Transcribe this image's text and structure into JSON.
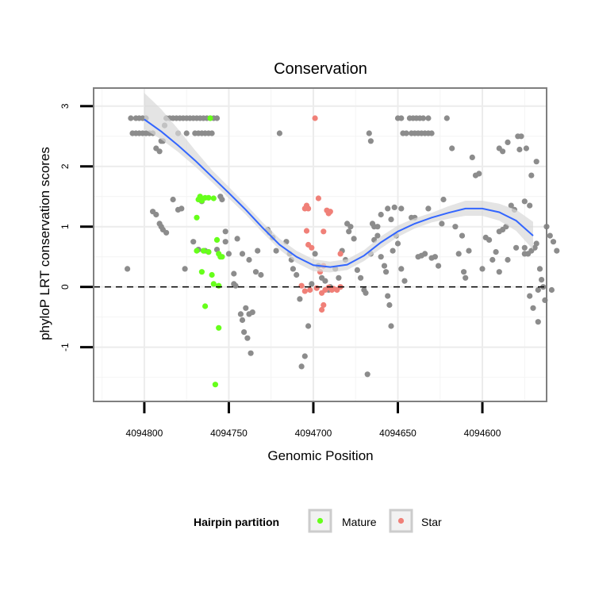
{
  "chart_data": {
    "type": "scatter",
    "title": "Conservation",
    "xlabel": "Genomic Position",
    "ylabel": "phyloP LRT conservation scores",
    "x_reversed": true,
    "xlim": [
      4094830,
      4094562
    ],
    "ylim": [
      -1.9,
      3.3
    ],
    "x_ticks": [
      4094800,
      4094750,
      4094700,
      4094650,
      4094600
    ],
    "x_tick_labels": [
      "4094800",
      "4094750",
      "4094700",
      "4094650",
      "4094600"
    ],
    "y_ticks": [
      -1,
      0,
      1,
      2,
      3
    ],
    "y_tick_labels": [
      "-1",
      "0",
      "1",
      "2",
      "3"
    ],
    "grid": true,
    "reference_line": {
      "y": 0,
      "style": "dashed"
    },
    "legend": {
      "title": "Hairpin partition",
      "position": "bottom",
      "entries": [
        {
          "label": "Mature",
          "color": "#66ff1a"
        },
        {
          "label": "Star",
          "color": "#f08078"
        }
      ]
    },
    "colors": {
      "other": "#8c8c8c",
      "mature": "#66ff1a",
      "star": "#f08078",
      "smooth": "#3366ff",
      "band": "#d9d9d9"
    },
    "smooth": {
      "x": [
        4094800,
        4094790,
        4094780,
        4094770,
        4094760,
        4094750,
        4094740,
        4094730,
        4094720,
        4094710,
        4094700,
        4094690,
        4094680,
        4094670,
        4094660,
        4094650,
        4094640,
        4094630,
        4094620,
        4094610,
        4094600,
        4094590,
        4094580,
        4094570
      ],
      "y": [
        2.78,
        2.58,
        2.35,
        2.1,
        1.83,
        1.56,
        1.28,
        0.98,
        0.7,
        0.5,
        0.36,
        0.33,
        0.37,
        0.52,
        0.74,
        0.92,
        1.05,
        1.15,
        1.23,
        1.3,
        1.3,
        1.24,
        1.1,
        0.85
      ],
      "lower": [
        2.62,
        2.45,
        2.24,
        2.0,
        1.74,
        1.47,
        1.2,
        0.9,
        0.62,
        0.4,
        0.26,
        0.24,
        0.28,
        0.43,
        0.64,
        0.83,
        0.97,
        1.07,
        1.13,
        1.18,
        1.18,
        1.1,
        0.93,
        0.62
      ],
      "upper": [
        3.22,
        2.95,
        2.62,
        2.27,
        1.94,
        1.66,
        1.37,
        1.07,
        0.8,
        0.6,
        0.46,
        0.42,
        0.46,
        0.61,
        0.84,
        1.02,
        1.14,
        1.23,
        1.34,
        1.43,
        1.43,
        1.38,
        1.28,
        1.08
      ]
    },
    "series": [
      {
        "name": "Mature",
        "color": "#66ff1a",
        "points": [
          [
            4094769,
            1.15
          ],
          [
            4094768,
            1.45
          ],
          [
            4094767,
            1.5
          ],
          [
            4094766,
            1.43
          ],
          [
            4094764,
            1.48
          ],
          [
            4094762,
            1.48
          ],
          [
            4094761,
            2.8
          ],
          [
            4094759,
            1.47
          ],
          [
            4094769,
            0.6
          ],
          [
            4094765,
            0.6
          ],
          [
            4094762,
            0.58
          ],
          [
            4094757,
            0.78
          ],
          [
            4094756,
            0.55
          ],
          [
            4094755,
            0.5
          ],
          [
            4094754,
            0.5
          ],
          [
            4094766,
            0.25
          ],
          [
            4094760,
            0.2
          ],
          [
            4094759,
            0.05
          ],
          [
            4094756,
            0.02
          ],
          [
            4094764,
            -0.32
          ],
          [
            4094756,
            -0.68
          ],
          [
            4094758,
            -1.62
          ]
        ]
      },
      {
        "name": "Star",
        "points": [
          [
            4094699,
            2.8
          ],
          [
            4094697,
            1.47
          ],
          [
            4094705,
            1.3
          ],
          [
            4094704,
            1.35
          ],
          [
            4094703,
            1.3
          ],
          [
            4094692,
            1.27
          ],
          [
            4094691,
            1.22
          ],
          [
            4094690,
            1.25
          ],
          [
            4094694,
            0.92
          ],
          [
            4094704,
            0.93
          ],
          [
            4094703,
            0.7
          ],
          [
            4094701,
            0.65
          ],
          [
            4094694,
            0.35
          ],
          [
            4094696,
            0.25
          ],
          [
            4094684,
            0.55
          ],
          [
            4094698,
            -0.02
          ],
          [
            4094695,
            -0.1
          ],
          [
            4094693,
            -0.05
          ],
          [
            4094691,
            -0.01
          ],
          [
            4094689,
            -0.05
          ],
          [
            4094688,
            -0.03
          ],
          [
            4094686,
            -0.05
          ],
          [
            4094684,
            0.0
          ],
          [
            4094695,
            -0.38
          ],
          [
            4094694,
            -0.3
          ],
          [
            4094702,
            -0.05
          ],
          [
            4094705,
            -0.07
          ],
          [
            4094707,
            0.02
          ]
        ]
      },
      {
        "points": [
          [
            4094810,
            0.3
          ],
          [
            4094808,
            2.8
          ],
          [
            4094805,
            2.8
          ],
          [
            4094803,
            2.8
          ],
          [
            4094801,
            2.8
          ],
          [
            4094799,
            2.8
          ],
          [
            4094807,
            2.55
          ],
          [
            4094805,
            2.55
          ],
          [
            4094803,
            2.55
          ],
          [
            4094801,
            2.55
          ],
          [
            4094799,
            2.55
          ],
          [
            4094797,
            2.55
          ],
          [
            4094795,
            2.55
          ],
          [
            4094793,
            2.3
          ],
          [
            4094791,
            2.25
          ],
          [
            4094790,
            2.42
          ],
          [
            4094789,
            2.42
          ],
          [
            4094788,
            2.68
          ],
          [
            4094787,
            2.8
          ],
          [
            4094785,
            2.8
          ],
          [
            4094783,
            2.8
          ],
          [
            4094781,
            2.8
          ],
          [
            4094779,
            2.8
          ],
          [
            4094777,
            2.8
          ],
          [
            4094775,
            2.8
          ],
          [
            4094773,
            2.8
          ],
          [
            4094771,
            2.8
          ],
          [
            4094769,
            2.8
          ],
          [
            4094767,
            2.8
          ],
          [
            4094765,
            2.8
          ],
          [
            4094763,
            2.8
          ],
          [
            4094761,
            2.8
          ],
          [
            4094759,
            2.8
          ],
          [
            4094757,
            2.8
          ],
          [
            4094780,
            2.55
          ],
          [
            4094775,
            2.55
          ],
          [
            4094770,
            2.55
          ],
          [
            4094768,
            2.55
          ],
          [
            4094766,
            2.55
          ],
          [
            4094764,
            2.55
          ],
          [
            4094762,
            2.55
          ],
          [
            4094760,
            2.55
          ],
          [
            4094795,
            1.25
          ],
          [
            4094793,
            1.2
          ],
          [
            4094791,
            1.05
          ],
          [
            4094790,
            1.0
          ],
          [
            4094789,
            0.95
          ],
          [
            4094787,
            0.9
          ],
          [
            4094783,
            1.45
          ],
          [
            4094780,
            1.28
          ],
          [
            4094778,
            1.3
          ],
          [
            4094776,
            0.3
          ],
          [
            4094771,
            0.75
          ],
          [
            4094768,
            0.62
          ],
          [
            4094766,
            1.42
          ],
          [
            4094764,
            0.6
          ],
          [
            4094762,
            0.58
          ],
          [
            4094755,
            1.5
          ],
          [
            4094754,
            1.45
          ],
          [
            4094757,
            0.62
          ],
          [
            4094752,
            0.75
          ],
          [
            4094750,
            0.55
          ],
          [
            4094747,
            0.22
          ],
          [
            4094747,
            0.05
          ],
          [
            4094746,
            0.02
          ],
          [
            4094743,
            -0.45
          ],
          [
            4094742,
            -0.55
          ],
          [
            4094741,
            -0.75
          ],
          [
            4094740,
            -0.35
          ],
          [
            4094739,
            -0.85
          ],
          [
            4094738,
            -0.45
          ],
          [
            4094737,
            -1.1
          ],
          [
            4094736,
            -0.42
          ],
          [
            4094734,
            0.25
          ],
          [
            4094733,
            0.6
          ],
          [
            4094731,
            0.2
          ],
          [
            4094752,
            0.92
          ],
          [
            4094745,
            0.8
          ],
          [
            4094742,
            0.55
          ],
          [
            4094738,
            0.45
          ],
          [
            4094727,
            0.95
          ],
          [
            4094726,
            0.9
          ],
          [
            4094724,
            0.82
          ],
          [
            4094722,
            0.6
          ],
          [
            4094720,
            2.55
          ],
          [
            4094716,
            0.75
          ],
          [
            4094714,
            0.55
          ],
          [
            4094713,
            0.45
          ],
          [
            4094712,
            0.3
          ],
          [
            4094710,
            0.2
          ],
          [
            4094708,
            -0.2
          ],
          [
            4094707,
            -1.32
          ],
          [
            4094705,
            -1.15
          ],
          [
            4094703,
            -0.65
          ],
          [
            4094701,
            0.05
          ],
          [
            4094699,
            0.55
          ],
          [
            4094697,
            0.35
          ],
          [
            4094695,
            0.15
          ],
          [
            4094693,
            0.1
          ],
          [
            4094691,
            -0.05
          ],
          [
            4094690,
            0.0
          ],
          [
            4094687,
            0.3
          ],
          [
            4094685,
            0.15
          ],
          [
            4094683,
            0.6
          ],
          [
            4094681,
            0.45
          ],
          [
            4094680,
            1.05
          ],
          [
            4094679,
            0.92
          ],
          [
            4094678,
            1.0
          ],
          [
            4094676,
            0.8
          ],
          [
            4094674,
            0.28
          ],
          [
            4094672,
            0.15
          ],
          [
            4094670,
            -0.05
          ],
          [
            4094669,
            -0.1
          ],
          [
            4094668,
            -1.45
          ],
          [
            4094667,
            2.55
          ],
          [
            4094666,
            2.42
          ],
          [
            4094665,
            1.05
          ],
          [
            4094664,
            1.0
          ],
          [
            4094662,
            0.85
          ],
          [
            4094660,
            0.5
          ],
          [
            4094658,
            0.35
          ],
          [
            4094657,
            0.25
          ],
          [
            4094656,
            -0.15
          ],
          [
            4094655,
            -0.3
          ],
          [
            4094654,
            -0.65
          ],
          [
            4094653,
            0.6
          ],
          [
            4094651,
            0.85
          ],
          [
            4094650,
            0.72
          ],
          [
            4094648,
            0.3
          ],
          [
            4094646,
            0.1
          ],
          [
            4094648,
            1.3
          ],
          [
            4094652,
            1.32
          ],
          [
            4094654,
            1.12
          ],
          [
            4094656,
            1.3
          ],
          [
            4094660,
            1.2
          ],
          [
            4094662,
            1.0
          ],
          [
            4094664,
            0.78
          ],
          [
            4094666,
            0.55
          ],
          [
            4094650,
            2.8
          ],
          [
            4094648,
            2.8
          ],
          [
            4094643,
            2.8
          ],
          [
            4094641,
            2.8
          ],
          [
            4094639,
            2.8
          ],
          [
            4094637,
            2.8
          ],
          [
            4094635,
            2.8
          ],
          [
            4094632,
            2.8
          ],
          [
            4094647,
            2.55
          ],
          [
            4094645,
            2.55
          ],
          [
            4094642,
            2.55
          ],
          [
            4094640,
            2.55
          ],
          [
            4094638,
            2.55
          ],
          [
            4094636,
            2.55
          ],
          [
            4094634,
            2.55
          ],
          [
            4094632,
            2.55
          ],
          [
            4094630,
            2.55
          ],
          [
            4094642,
            1.15
          ],
          [
            4094640,
            1.15
          ],
          [
            4094638,
            0.5
          ],
          [
            4094636,
            0.52
          ],
          [
            4094634,
            0.55
          ],
          [
            4094632,
            1.3
          ],
          [
            4094630,
            0.48
          ],
          [
            4094628,
            0.5
          ],
          [
            4094626,
            0.35
          ],
          [
            4094624,
            1.05
          ],
          [
            4094623,
            1.45
          ],
          [
            4094621,
            2.8
          ],
          [
            4094618,
            2.3
          ],
          [
            4094616,
            1.0
          ],
          [
            4094614,
            0.55
          ],
          [
            4094612,
            0.85
          ],
          [
            4094611,
            0.25
          ],
          [
            4094610,
            0.15
          ],
          [
            4094608,
            0.6
          ],
          [
            4094606,
            2.15
          ],
          [
            4094604,
            1.85
          ],
          [
            4094602,
            1.88
          ],
          [
            4094600,
            0.3
          ],
          [
            4094598,
            0.82
          ],
          [
            4094596,
            0.78
          ],
          [
            4094594,
            0.45
          ],
          [
            4094592,
            0.58
          ],
          [
            4094590,
            0.92
          ],
          [
            4094588,
            0.95
          ],
          [
            4094586,
            1.0
          ],
          [
            4094588,
            2.25
          ],
          [
            4094590,
            2.3
          ],
          [
            4094585,
            2.4
          ],
          [
            4094583,
            1.35
          ],
          [
            4094581,
            1.28
          ],
          [
            4094579,
            2.5
          ],
          [
            4094577,
            2.5
          ],
          [
            4094575,
            0.65
          ],
          [
            4094573,
            0.55
          ],
          [
            4094571,
            0.6
          ],
          [
            4094569,
            0.65
          ],
          [
            4094568,
            0.72
          ],
          [
            4094566,
            0.3
          ],
          [
            4094565,
            0.12
          ],
          [
            4094564,
            0.0
          ],
          [
            4094562,
            1.0
          ],
          [
            4094560,
            0.85
          ],
          [
            4094558,
            0.75
          ],
          [
            4094556,
            0.6
          ],
          [
            4094570,
            -0.35
          ],
          [
            4094572,
            -0.15
          ],
          [
            4094567,
            -0.58
          ],
          [
            4094563,
            -0.22
          ],
          [
            4094559,
            -0.05
          ],
          [
            4094572,
            1.35
          ],
          [
            4094575,
            1.42
          ],
          [
            4094578,
            2.28
          ],
          [
            4094574,
            2.3
          ],
          [
            4094571,
            1.85
          ],
          [
            4094568,
            2.08
          ],
          [
            4094567,
            -0.05
          ],
          [
            4094575,
            0.55
          ],
          [
            4094580,
            0.65
          ],
          [
            4094585,
            0.45
          ],
          [
            4094590,
            0.25
          ]
        ]
      }
    ]
  }
}
